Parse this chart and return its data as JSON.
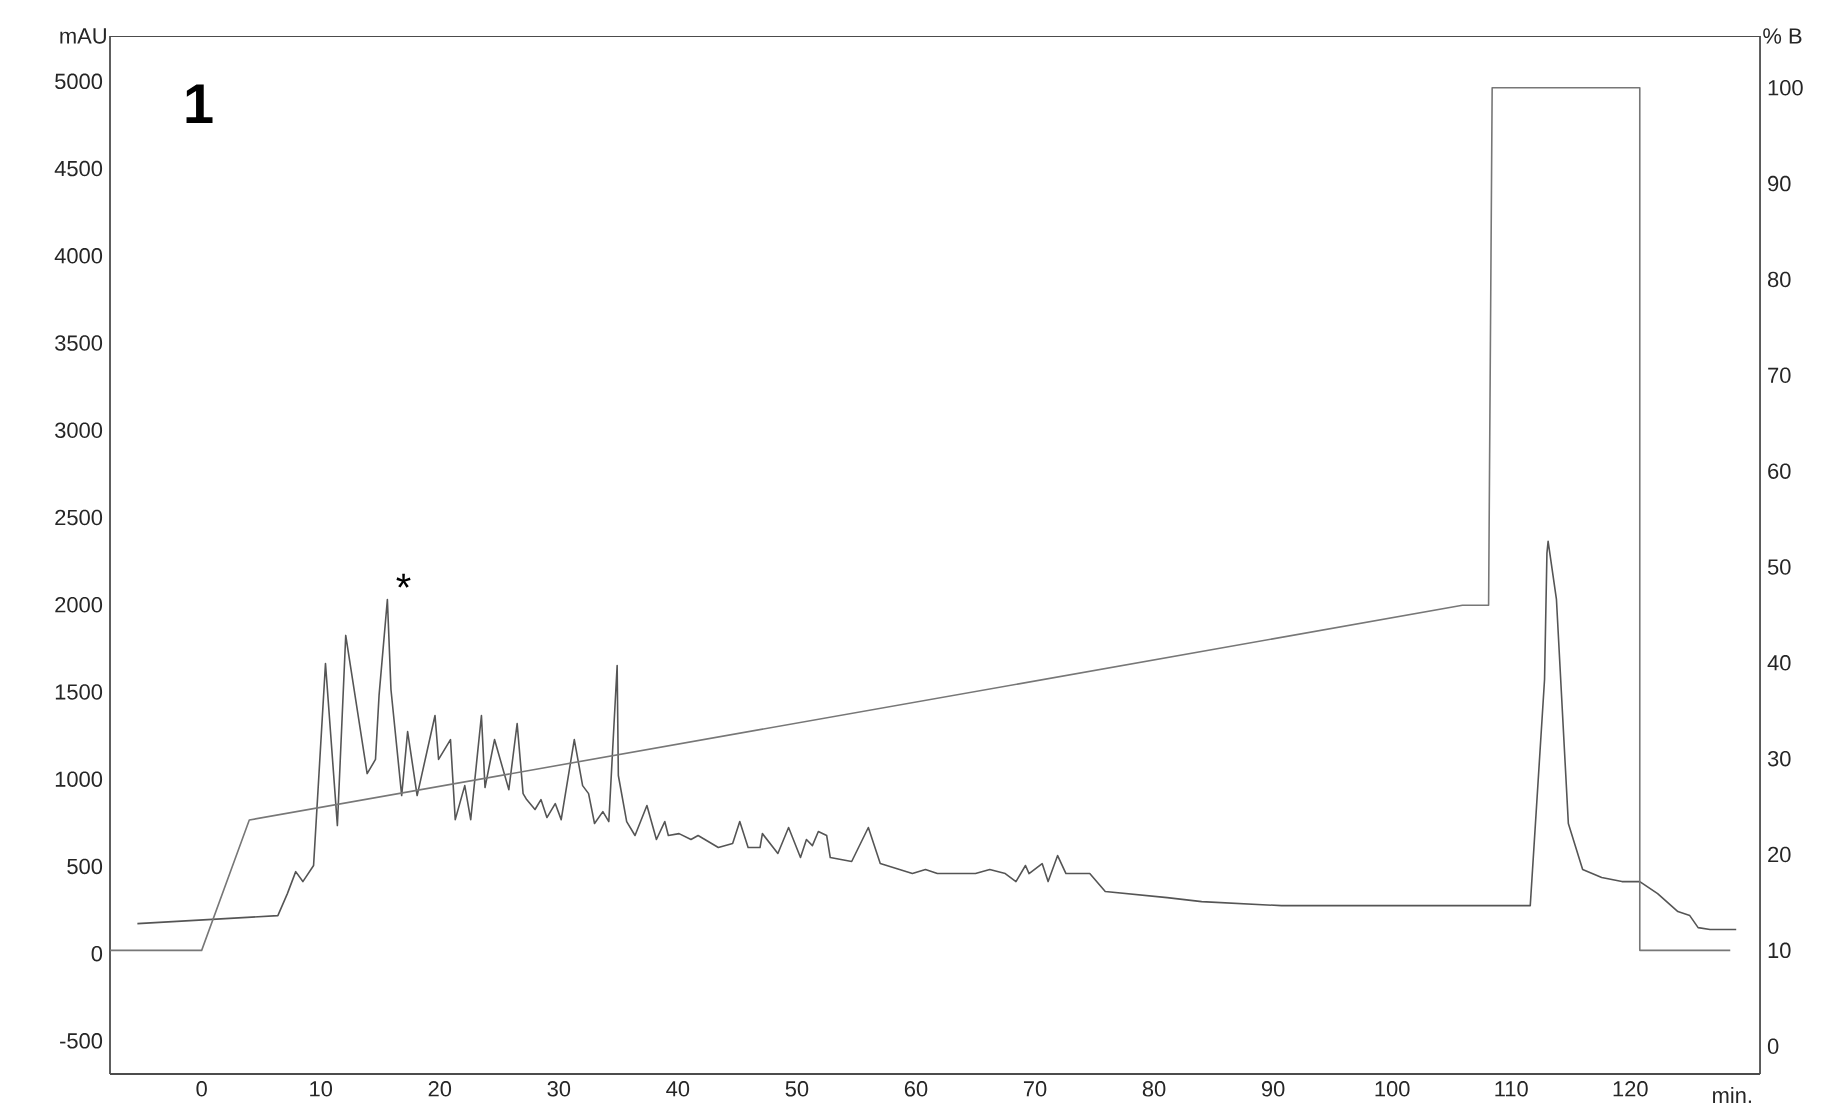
{
  "chart_data": {
    "type": "line",
    "xlabel": "min.",
    "ylabel": "mAU",
    "y2label": "% B",
    "xlim": [
      -7.7,
      130.9
    ],
    "xticks": [
      0,
      10,
      20,
      30,
      40,
      50,
      60,
      70,
      80,
      90,
      100,
      110,
      120
    ],
    "ylim": [
      -690,
      5260
    ],
    "yticks": [
      -500,
      0,
      500,
      1000,
      1500,
      2000,
      2500,
      3000,
      3500,
      4000,
      4500,
      5000
    ],
    "y2lim": [
      -2.9,
      105.4
    ],
    "y2ticks": [
      0,
      10,
      20,
      30,
      40,
      50,
      60,
      70,
      80,
      90,
      100
    ],
    "grid": false,
    "line_style": "solid",
    "marker": "none",
    "annotations": [
      "1",
      {
        "text": "*",
        "x": 15.6,
        "y": 2030
      }
    ],
    "series": [
      {
        "color": "#555555",
        "x": [
          -5.4,
          6.4,
          7.2,
          7.9,
          8.5,
          9.4,
          10.4,
          11.4,
          12.1,
          13.9,
          14.6,
          14.9,
          15.6,
          15.9,
          16.8,
          17.3,
          18.1,
          19.6,
          19.9,
          20.9,
          21.3,
          22.1,
          22.6,
          23.5,
          23.8,
          24.6,
          25.8,
          26.5,
          27.0,
          27.3,
          28.0,
          28.5,
          29.0,
          29.7,
          30.2,
          31.3,
          32.0,
          32.5,
          33.0,
          33.7,
          34.2,
          34.9,
          35.0,
          35.7,
          36.4,
          37.4,
          38.2,
          38.9,
          39.2,
          40.1,
          41.1,
          41.7,
          43.4,
          44.6,
          45.2,
          45.9,
          46.9,
          47.1,
          48.4,
          49.3,
          50.3,
          50.8,
          51.3,
          51.8,
          52.5,
          52.8,
          54.6,
          56.0,
          57.0,
          59.7,
          60.8,
          61.8,
          65.0,
          66.2,
          67.5,
          68.4,
          69.2,
          69.5,
          70.6,
          71.1,
          71.9,
          72.6,
          74.6,
          75.9,
          81.1,
          84.0,
          90.7,
          111.6,
          112.8,
          113.0,
          113.1,
          113.8,
          114.8,
          116.0,
          117.6,
          119.3,
          120.8,
          122.3,
          124.0,
          125.0,
          125.7,
          126.7,
          128.9
        ],
        "values": [
          172,
          218,
          344,
          470,
          413,
          505,
          1663,
          734,
          1824,
          1032,
          1113,
          1480,
          2030,
          1514,
          906,
          1273,
          906,
          1365,
          1113,
          1227,
          768,
          963,
          768,
          1365,
          952,
          1227,
          940,
          1319,
          917,
          883,
          826,
          883,
          780,
          860,
          768,
          1227,
          963,
          917,
          746,
          814,
          757,
          1652,
          1021,
          757,
          677,
          849,
          654,
          757,
          677,
          688,
          654,
          677,
          608,
          631,
          757,
          608,
          608,
          688,
          574,
          723,
          551,
          654,
          619,
          700,
          677,
          551,
          528,
          723,
          516,
          459,
          482,
          459,
          459,
          482,
          459,
          413,
          505,
          459,
          516,
          413,
          562,
          459,
          459,
          356,
          321,
          298,
          275,
          275,
          1571,
          2294,
          2363,
          2030,
          746,
          482,
          436,
          413,
          413,
          344,
          241,
          218,
          149,
          138,
          138
        ]
      },
      {
        "color": "#777777",
        "axis": "y2",
        "x": [
          -7.7,
          0,
          4.0,
          105.9,
          108.1,
          108.4,
          120.8,
          120.8,
          128.4
        ],
        "values": [
          10,
          10,
          23.6,
          46,
          46,
          100,
          100,
          10,
          10
        ]
      }
    ]
  }
}
